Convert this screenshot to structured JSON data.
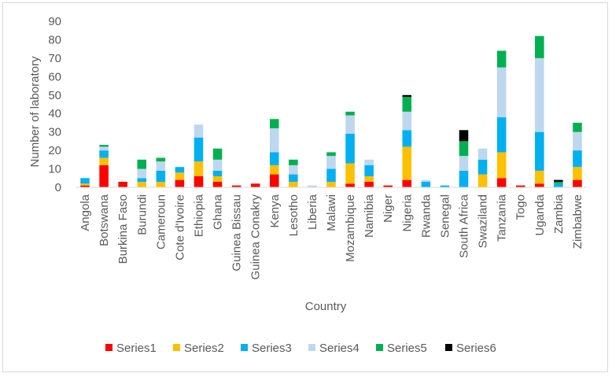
{
  "chart_data": {
    "type": "bar",
    "stacked": true,
    "title": "",
    "xlabel": "Country",
    "ylabel": "Number of laboratory",
    "ylim": [
      0,
      90
    ],
    "yticks": [
      0,
      10,
      20,
      30,
      40,
      50,
      60,
      70,
      80,
      90
    ],
    "grid": false,
    "legend_position": "bottom",
    "categories": [
      "Angola",
      "Botswana",
      "Burkina Faso",
      "Burundi",
      "Cameroun",
      "Cote d'Ivoire",
      "Ethiopia",
      "Ghana",
      "Guinea Bissau",
      "Guinea Conakry",
      "Kenya",
      "Lesotho",
      "Liberia",
      "Malawi",
      "Mozambique",
      "Namibia",
      "Niger",
      "Nigeria",
      "Rwanda",
      "Senegal",
      "South Africa",
      "Swaziland",
      "Tanzania",
      "Togo",
      "Uganda",
      "Zambia",
      "Zimbabwe"
    ],
    "series": [
      {
        "name": "Series1",
        "color": "#ff0000",
        "values": [
          1,
          12,
          3,
          0,
          0,
          4,
          6,
          3,
          1,
          2,
          7,
          0,
          0,
          0,
          2,
          3,
          1,
          4,
          0,
          0,
          0,
          0,
          5,
          1,
          2,
          0,
          4
        ]
      },
      {
        "name": "Series2",
        "color": "#ffc000",
        "values": [
          1,
          4,
          0,
          3,
          3,
          4,
          8,
          3,
          0,
          0,
          5,
          3,
          0,
          3,
          11,
          3,
          0,
          18,
          0,
          0,
          0,
          7,
          14,
          0,
          7,
          0,
          7
        ]
      },
      {
        "name": "Series3",
        "color": "#00b0f0",
        "values": [
          3,
          4,
          0,
          2,
          6,
          3,
          13,
          3,
          0,
          0,
          7,
          4,
          0,
          7,
          16,
          6,
          0,
          9,
          3,
          1,
          9,
          8,
          19,
          0,
          21,
          2,
          9
        ]
      },
      {
        "name": "Series4",
        "color": "#bdd7ee",
        "values": [
          0,
          2,
          0,
          5,
          5,
          0,
          7,
          6,
          0,
          0,
          13,
          5,
          1,
          7,
          10,
          3,
          0,
          10,
          1,
          0,
          8,
          6,
          27,
          0,
          40,
          0,
          10
        ]
      },
      {
        "name": "Series5",
        "color": "#00b050",
        "values": [
          0,
          1,
          0,
          5,
          2,
          0,
          0,
          6,
          0,
          0,
          5,
          3,
          0,
          2,
          2,
          0,
          0,
          8,
          0,
          0,
          8,
          0,
          9,
          0,
          12,
          1,
          5
        ]
      },
      {
        "name": "Series6",
        "color": "#000000",
        "values": [
          0,
          0,
          0,
          0,
          0,
          0,
          0,
          0,
          0,
          0,
          0,
          0,
          0,
          0,
          0,
          0,
          0,
          1,
          0,
          0,
          6,
          0,
          0,
          0,
          0,
          1,
          0
        ]
      }
    ]
  }
}
